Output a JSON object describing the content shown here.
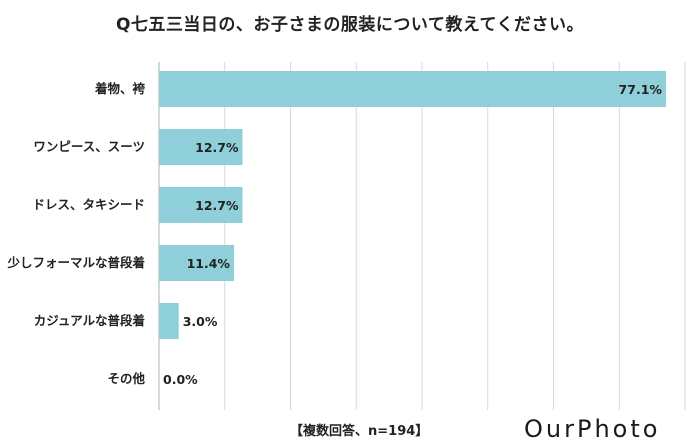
{
  "title": "Q七五三当日の、お子さまの服装について教えてください。",
  "note": "【複数回答、n=194】",
  "logo": "OurPhoto",
  "colors": {
    "bar": "#8ecfd9",
    "grid": "#d9d9d9",
    "axis": "#bfbfbf"
  },
  "chart_data": {
    "type": "bar",
    "orientation": "horizontal",
    "categories": [
      "着物、袴",
      "ワンピース、スーツ",
      "ドレス、タキシード",
      "少しフォーマルな普段着",
      "カジュアルな普段着",
      "その他"
    ],
    "values": [
      77.1,
      12.7,
      12.7,
      11.4,
      3.0,
      0.0
    ],
    "value_labels": [
      "77.1%",
      "12.7%",
      "12.7%",
      "11.4%",
      "3.0%",
      "0.0%"
    ],
    "xlim": [
      0,
      80
    ],
    "grid": true
  }
}
